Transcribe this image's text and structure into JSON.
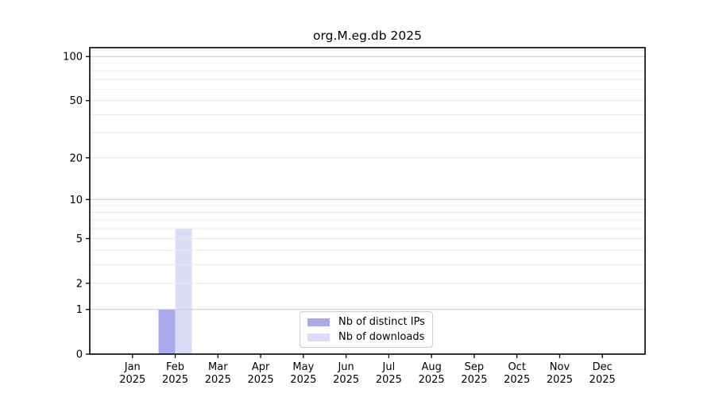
{
  "chart_data": {
    "type": "bar",
    "title": "org.M.eg.db 2025",
    "x_categories": [
      "Jan",
      "Feb",
      "Mar",
      "Apr",
      "May",
      "Jun",
      "Jul",
      "Aug",
      "Sep",
      "Oct",
      "Nov",
      "Dec"
    ],
    "x_year_label": "2025",
    "series": [
      {
        "name": "Nb of distinct IPs",
        "color": "#a9a9ee",
        "values": [
          0,
          1,
          0,
          0,
          0,
          0,
          0,
          0,
          0,
          0,
          0,
          0
        ]
      },
      {
        "name": "Nb of downloads",
        "color": "#dcdcf8",
        "values": [
          0,
          6,
          0,
          0,
          0,
          0,
          0,
          0,
          0,
          0,
          0,
          0
        ]
      }
    ],
    "y_scale": "log10(1+x)",
    "y_tick_labels": [
      0,
      1,
      2,
      5,
      10,
      20,
      50,
      100
    ],
    "y_major_gridlines": [
      1,
      10,
      100
    ],
    "y_minor_gridlines": [
      2,
      3,
      4,
      5,
      6,
      7,
      8,
      9,
      20,
      30,
      40,
      50,
      60,
      70,
      80,
      90,
      110
    ],
    "ylim": [
      0,
      115
    ],
    "legend_position": "lower center",
    "colors": {
      "axis": "#000000",
      "tick_text": "#000000",
      "major_grid": "#c9c9c9",
      "minor_grid": "#eaeaea",
      "legend_border": "#cccccc",
      "background": "#ffffff"
    }
  }
}
